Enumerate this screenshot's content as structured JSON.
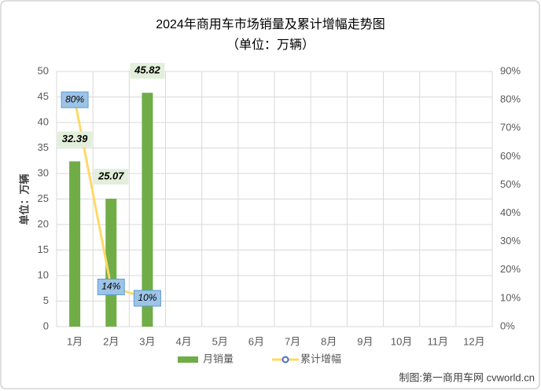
{
  "chart_data": {
    "type": "bar_line",
    "title": "2024年商用车市场销量及累计增幅走势图",
    "subtitle": "（单位：万辆）",
    "y_label": "单位：万辆",
    "source": "制图:第一商用车网 cvworld.cn",
    "categories": [
      "1月",
      "2月",
      "3月",
      "4月",
      "5月",
      "6月",
      "7月",
      "8月",
      "9月",
      "10月",
      "11月",
      "12月"
    ],
    "series": [
      {
        "name": "月销量",
        "color": "#70ad47",
        "type": "bar",
        "values": [
          32.39,
          25.07,
          45.82,
          null,
          null,
          null,
          null,
          null,
          null,
          null,
          null,
          null
        ]
      },
      {
        "name": "累计增幅",
        "color": "#ffd966",
        "type": "line",
        "axis": "y2",
        "values": [
          80,
          14,
          10,
          null,
          null,
          null,
          null,
          null,
          null,
          null,
          null,
          null
        ],
        "value_labels": [
          "80%",
          "14%",
          "10%",
          null,
          null,
          null,
          null,
          null,
          null,
          null,
          null,
          null
        ]
      }
    ],
    "ylim": [
      0,
      50
    ],
    "yticks": [
      0,
      5,
      10,
      15,
      20,
      25,
      30,
      35,
      40,
      45,
      50
    ],
    "y2lim": [
      0,
      90
    ],
    "y2ticks": [
      {
        "value": 0,
        "label": "0%"
      },
      {
        "value": 10,
        "label": "10%"
      },
      {
        "value": 20,
        "label": "20%"
      },
      {
        "value": 30,
        "label": "30%"
      },
      {
        "value": 40,
        "label": "40%"
      },
      {
        "value": 50,
        "label": "50%"
      },
      {
        "value": 60,
        "label": "60%"
      },
      {
        "value": 70,
        "label": "70%"
      },
      {
        "value": 80,
        "label": "80%"
      },
      {
        "value": 90,
        "label": "90%"
      }
    ],
    "grid": true,
    "legend": "bottom"
  }
}
